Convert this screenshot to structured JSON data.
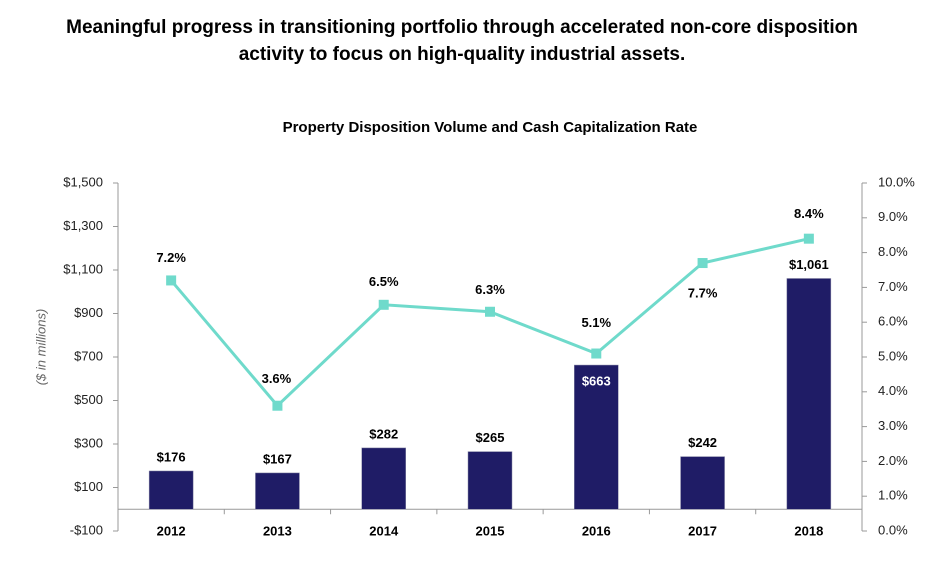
{
  "chart_data": {
    "type": "combo",
    "title": [
      "Meaningful progress in transitioning portfolio through accelerated non-core disposition",
      "activity to focus on high-quality industrial assets."
    ],
    "subtitle": "Property Disposition Volume and Cash Capitalization Rate",
    "y_label": "($ in millions)",
    "categories": [
      "2012",
      "2013",
      "2014",
      "2015",
      "2016",
      "2017",
      "2018"
    ],
    "series": [
      {
        "type": "bar",
        "color": "#1f1c66",
        "values": [
          176,
          167,
          282,
          265,
          663,
          242,
          1061
        ],
        "value_labels": [
          "$176",
          "$167",
          "$282",
          "$265",
          "$663",
          "$242",
          "$1,061"
        ]
      },
      {
        "type": "line",
        "axis": "y2",
        "color": "#6fdacb",
        "values": [
          7.2,
          3.6,
          6.5,
          6.3,
          5.1,
          7.7,
          8.4
        ],
        "value_labels": [
          "7.2%",
          "3.6%",
          "6.5%",
          "6.3%",
          "5.1%",
          "7.7%",
          "8.4%"
        ]
      }
    ],
    "ylim": [
      -100,
      1500
    ],
    "yticks": [
      {
        "value": -100,
        "label": "-$100"
      },
      {
        "value": 100,
        "label": "$100"
      },
      {
        "value": 300,
        "label": "$300"
      },
      {
        "value": 500,
        "label": "$500"
      },
      {
        "value": 700,
        "label": "$700"
      },
      {
        "value": 900,
        "label": "$900"
      },
      {
        "value": 1100,
        "label": "$1,100"
      },
      {
        "value": 1300,
        "label": "$1,300"
      },
      {
        "value": 1500,
        "label": "$1,500"
      }
    ],
    "y2lim": [
      0,
      10
    ],
    "y2ticks": [
      {
        "value": 0,
        "label": "0.0%"
      },
      {
        "value": 1,
        "label": "1.0%"
      },
      {
        "value": 2,
        "label": "2.0%"
      },
      {
        "value": 3,
        "label": "3.0%"
      },
      {
        "value": 4,
        "label": "4.0%"
      },
      {
        "value": 5,
        "label": "5.0%"
      },
      {
        "value": 6,
        "label": "6.0%"
      },
      {
        "value": 7,
        "label": "7.0%"
      },
      {
        "value": 8,
        "label": "8.0%"
      },
      {
        "value": 9,
        "label": "9.0%"
      },
      {
        "value": 10,
        "label": "10.0%"
      }
    ]
  }
}
